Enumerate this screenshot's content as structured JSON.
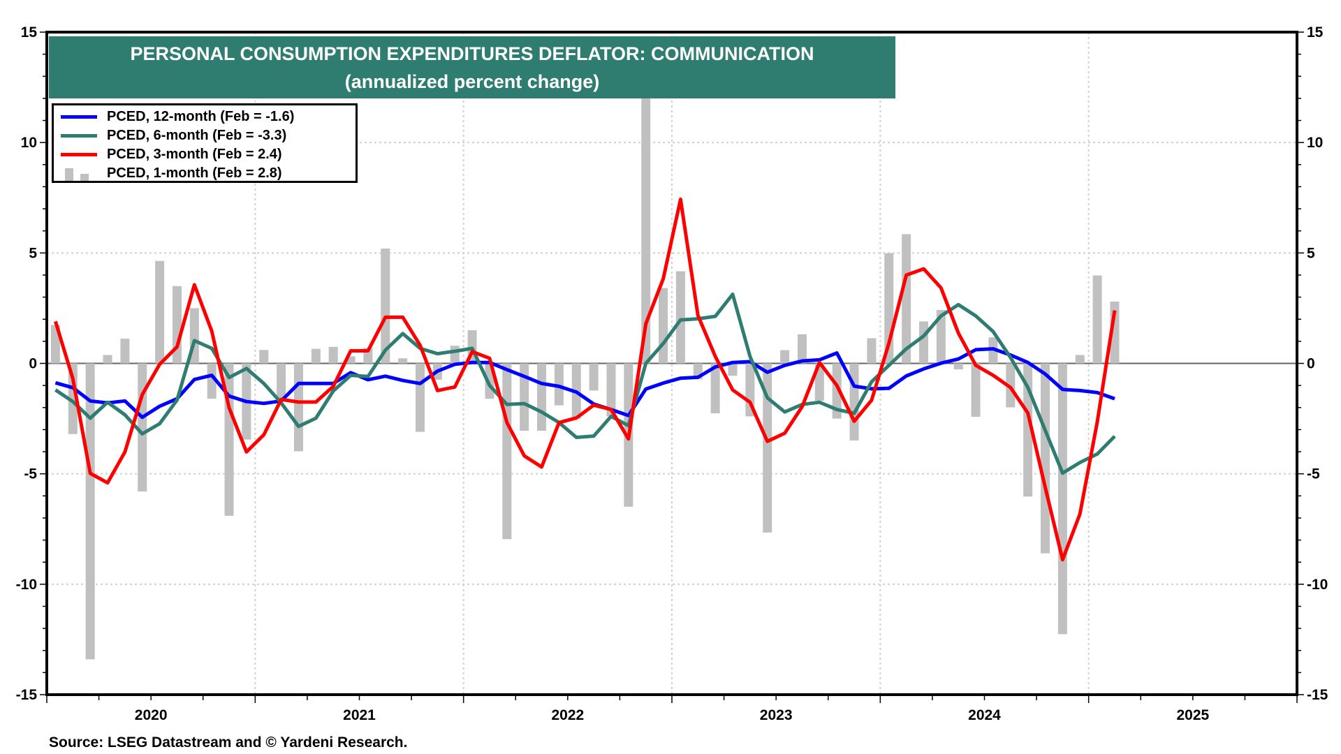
{
  "title": {
    "line1": "PERSONAL CONSUMPTION EXPENDITURES DEFLATOR: COMMUNICATION",
    "line2": "(annualized percent change)"
  },
  "legend": [
    {
      "label": "PCED, 12-month (Feb = -1.6)",
      "color": "#0000ff",
      "kind": "line"
    },
    {
      "label": "PCED, 6-month (Feb = -3.3)",
      "color": "#2f7d71",
      "kind": "line"
    },
    {
      "label": "PCED, 3-month (Feb = 2.4)",
      "color": "#ff0000",
      "kind": "line"
    },
    {
      "label": "PCED, 1-month (Feb = 2.8)",
      "color": "#c0c0c0",
      "kind": "bar"
    }
  ],
  "source": "Source: LSEG Datastream and © Yardeni Research.",
  "chart_data": {
    "type": "line",
    "title": "PERSONAL CONSUMPTION EXPENDITURES DEFLATOR: COMMUNICATION (annualized percent change)",
    "x_start": "2020-01",
    "x_end": "2025-02",
    "frequency": "monthly",
    "x_ticks": [
      "2020",
      "2021",
      "2022",
      "2023",
      "2024",
      "2025"
    ],
    "xlim": [
      "2020-01",
      "2025-12"
    ],
    "ylim": [
      -15,
      15
    ],
    "y_ticks": [
      "15",
      "10",
      "5",
      "0",
      "-5",
      "-10",
      "-15"
    ],
    "grid": true,
    "legend_position": "top-left",
    "series": [
      {
        "name": "PCED, 12-month",
        "type": "line",
        "color": "#0000ff",
        "values": [
          -0.88,
          -1.1,
          -1.7,
          -1.79,
          -1.7,
          -2.44,
          -1.94,
          -1.6,
          -0.73,
          -0.54,
          -1.48,
          -1.73,
          -1.81,
          -1.7,
          -0.91,
          -0.91,
          -0.91,
          -0.42,
          -0.74,
          -0.58,
          -0.77,
          -0.91,
          -0.35,
          -0.04,
          0.04,
          0.04,
          -0.28,
          -0.59,
          -0.91,
          -1.04,
          -1.3,
          -1.84,
          -2.09,
          -2.36,
          -1.16,
          -0.89,
          -0.67,
          -0.63,
          -0.16,
          0.04,
          0.08,
          -0.4,
          -0.09,
          0.11,
          0.16,
          0.47,
          -1.03,
          -1.15,
          -1.13,
          -0.57,
          -0.25,
          0.01,
          0.2,
          0.62,
          0.66,
          0.38,
          0.04,
          -0.48,
          -1.18,
          -1.23,
          -1.32,
          -1.6
        ]
      },
      {
        "name": "PCED, 6-month",
        "type": "line",
        "color": "#2f7d71",
        "values": [
          -1.2,
          -1.73,
          -2.48,
          -1.76,
          -2.33,
          -3.19,
          -2.73,
          -1.66,
          1.03,
          0.68,
          -0.64,
          -0.23,
          -0.91,
          -1.79,
          -2.85,
          -2.48,
          -1.25,
          -0.54,
          -0.59,
          0.6,
          1.35,
          0.68,
          0.44,
          0.55,
          0.68,
          -1.0,
          -1.86,
          -1.82,
          -2.2,
          -2.68,
          -3.35,
          -3.29,
          -2.4,
          -2.82,
          0,
          0.9,
          1.97,
          2.02,
          2.13,
          3.13,
          0.31,
          -1.56,
          -2.2,
          -1.86,
          -1.76,
          -2.09,
          -2.26,
          -0.83,
          -0.09,
          0.66,
          1.24,
          2.15,
          2.66,
          2.15,
          1.44,
          0.27,
          -1.09,
          -3.03,
          -4.97,
          -4.49,
          -4.1,
          -3.3
        ]
      },
      {
        "name": "PCED, 3-month",
        "type": "line",
        "color": "#ff0000",
        "values": [
          1.9,
          -0.69,
          -4.98,
          -5.41,
          -4.01,
          -1.41,
          -0.04,
          0.75,
          3.56,
          1.46,
          -2.01,
          -4.01,
          -3.23,
          -1.63,
          -1.75,
          -1.75,
          -1.04,
          0.57,
          0.57,
          2.09,
          2.09,
          0.82,
          -1.23,
          -1.07,
          0.53,
          0.23,
          -2.68,
          -4.19,
          -4.69,
          -2.68,
          -2.47,
          -1.89,
          -2.09,
          -3.42,
          1.8,
          3.83,
          7.43,
          2.17,
          0.31,
          -1.2,
          -1.76,
          -3.53,
          -3.16,
          -1.96,
          0.04,
          -1.0,
          -2.62,
          -1.67,
          0.92,
          4.0,
          4.28,
          3.42,
          1.37,
          -0.09,
          -0.54,
          -1.09,
          -2.25,
          -5.61,
          -8.89,
          -6.82,
          -2.64,
          2.4
        ]
      },
      {
        "name": "PCED, 1-month",
        "type": "bar",
        "color": "#c0c0c0",
        "values": [
          1.74,
          -3.2,
          -13.4,
          0.38,
          1.12,
          -5.8,
          4.64,
          3.5,
          2.5,
          -1.6,
          -6.9,
          -3.45,
          0.61,
          -1.6,
          -3.98,
          0.66,
          0.75,
          0.32,
          0.7,
          5.2,
          0.23,
          -3.1,
          -0.74,
          0.8,
          1.5,
          -1.6,
          -7.96,
          -3.05,
          -3.05,
          -1.9,
          -2.5,
          -1.23,
          -2.4,
          -6.49,
          12.2,
          3.41,
          4.17,
          -0.72,
          -2.26,
          -0.56,
          -2.4,
          -7.66,
          0.6,
          1.32,
          -1.69,
          -2.5,
          -3.49,
          1.14,
          4.99,
          5.85,
          1.9,
          2.42,
          -0.27,
          -2.42,
          1.18,
          -1.99,
          -6.03,
          -8.6,
          -12.26,
          0.38,
          3.98,
          2.8
        ]
      }
    ]
  }
}
